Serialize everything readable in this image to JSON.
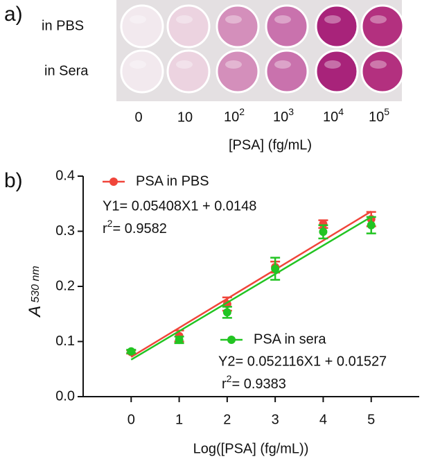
{
  "panel_a": {
    "label": "a)",
    "rows": [
      "in PBS",
      "in Sera"
    ],
    "columns": [
      "0",
      "10",
      {
        "base": "10",
        "sup": "2"
      },
      {
        "base": "10",
        "sup": "3"
      },
      {
        "base": "10",
        "sup": "4"
      },
      {
        "base": "10",
        "sup": "5"
      }
    ],
    "xlabel": "[PSA] (fg/mL)"
  },
  "chart_data": {
    "type": "scatter",
    "label": "b)",
    "xlabel": "Log([PSA] (fg/mL))",
    "ylabel": {
      "main": "A",
      "sub": "530 nm"
    },
    "x": [
      0,
      1,
      2,
      3,
      4,
      5
    ],
    "xlim": [
      -1,
      6
    ],
    "xticks": [
      0,
      1,
      2,
      3,
      4,
      5
    ],
    "ylim": [
      0,
      0.4
    ],
    "yticks": [
      {
        "value": 0,
        "label": "0.0"
      },
      0.1,
      0.2,
      0.3,
      0.4
    ],
    "series": [
      {
        "name": "PSA in PBS",
        "color": "#f0453a",
        "values": [
          0.081,
          0.11,
          0.168,
          0.235,
          0.313,
          0.322
        ],
        "errors": [
          0.003,
          0.01,
          0.012,
          0.01,
          0.007,
          0.013
        ],
        "equation": "Y1= 0.05408X1 + 0.0148",
        "r2": {
          "base": "r",
          "sup": "2",
          "rest": "= 0.9582"
        },
        "fit": {
          "x": [
            0,
            5
          ],
          "values": [
            0.072,
            0.336
          ]
        }
      },
      {
        "name": "PSA in sera",
        "color": "#22c422",
        "values": [
          0.082,
          0.103,
          0.153,
          0.232,
          0.299,
          0.311
        ],
        "errors": [
          0.003,
          0.006,
          0.01,
          0.02,
          0.012,
          0.015
        ],
        "equation": "Y2= 0.052116X1 + 0.01527",
        "r2": {
          "base": "r",
          "sup": "2",
          "rest": "= 0.9383"
        },
        "fit": {
          "x": [
            0,
            5
          ],
          "values": [
            0.067,
            0.326
          ]
        }
      }
    ]
  }
}
